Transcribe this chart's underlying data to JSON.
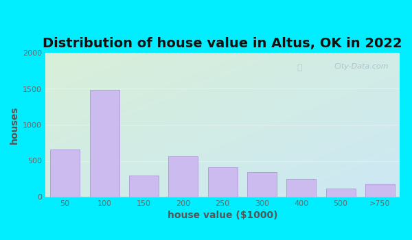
{
  "title": "Distribution of house value in Altus, OK in 2022",
  "xlabel": "house value ($1000)",
  "ylabel": "houses",
  "categories": [
    "50",
    "100",
    "150",
    "200",
    "250",
    "300",
    "400",
    "500",
    ">750"
  ],
  "values": [
    660,
    1490,
    300,
    560,
    410,
    340,
    245,
    110,
    185
  ],
  "bar_color": "#ccbbee",
  "bar_edge_color": "#b0a0d8",
  "ylim": [
    0,
    2000
  ],
  "yticks": [
    0,
    500,
    1000,
    1500,
    2000
  ],
  "fig_bg_color": "#00eeff",
  "plot_bg_top_left": "#d8efd8",
  "plot_bg_bottom_right": "#cce8f4",
  "title_fontsize": 14,
  "axis_label_fontsize": 10,
  "tick_fontsize": 8,
  "watermark_text": "City-Data.com",
  "watermark_color": "#aabbc8",
  "title_color": "#111111",
  "label_color": "#555555",
  "tick_color": "#666666"
}
